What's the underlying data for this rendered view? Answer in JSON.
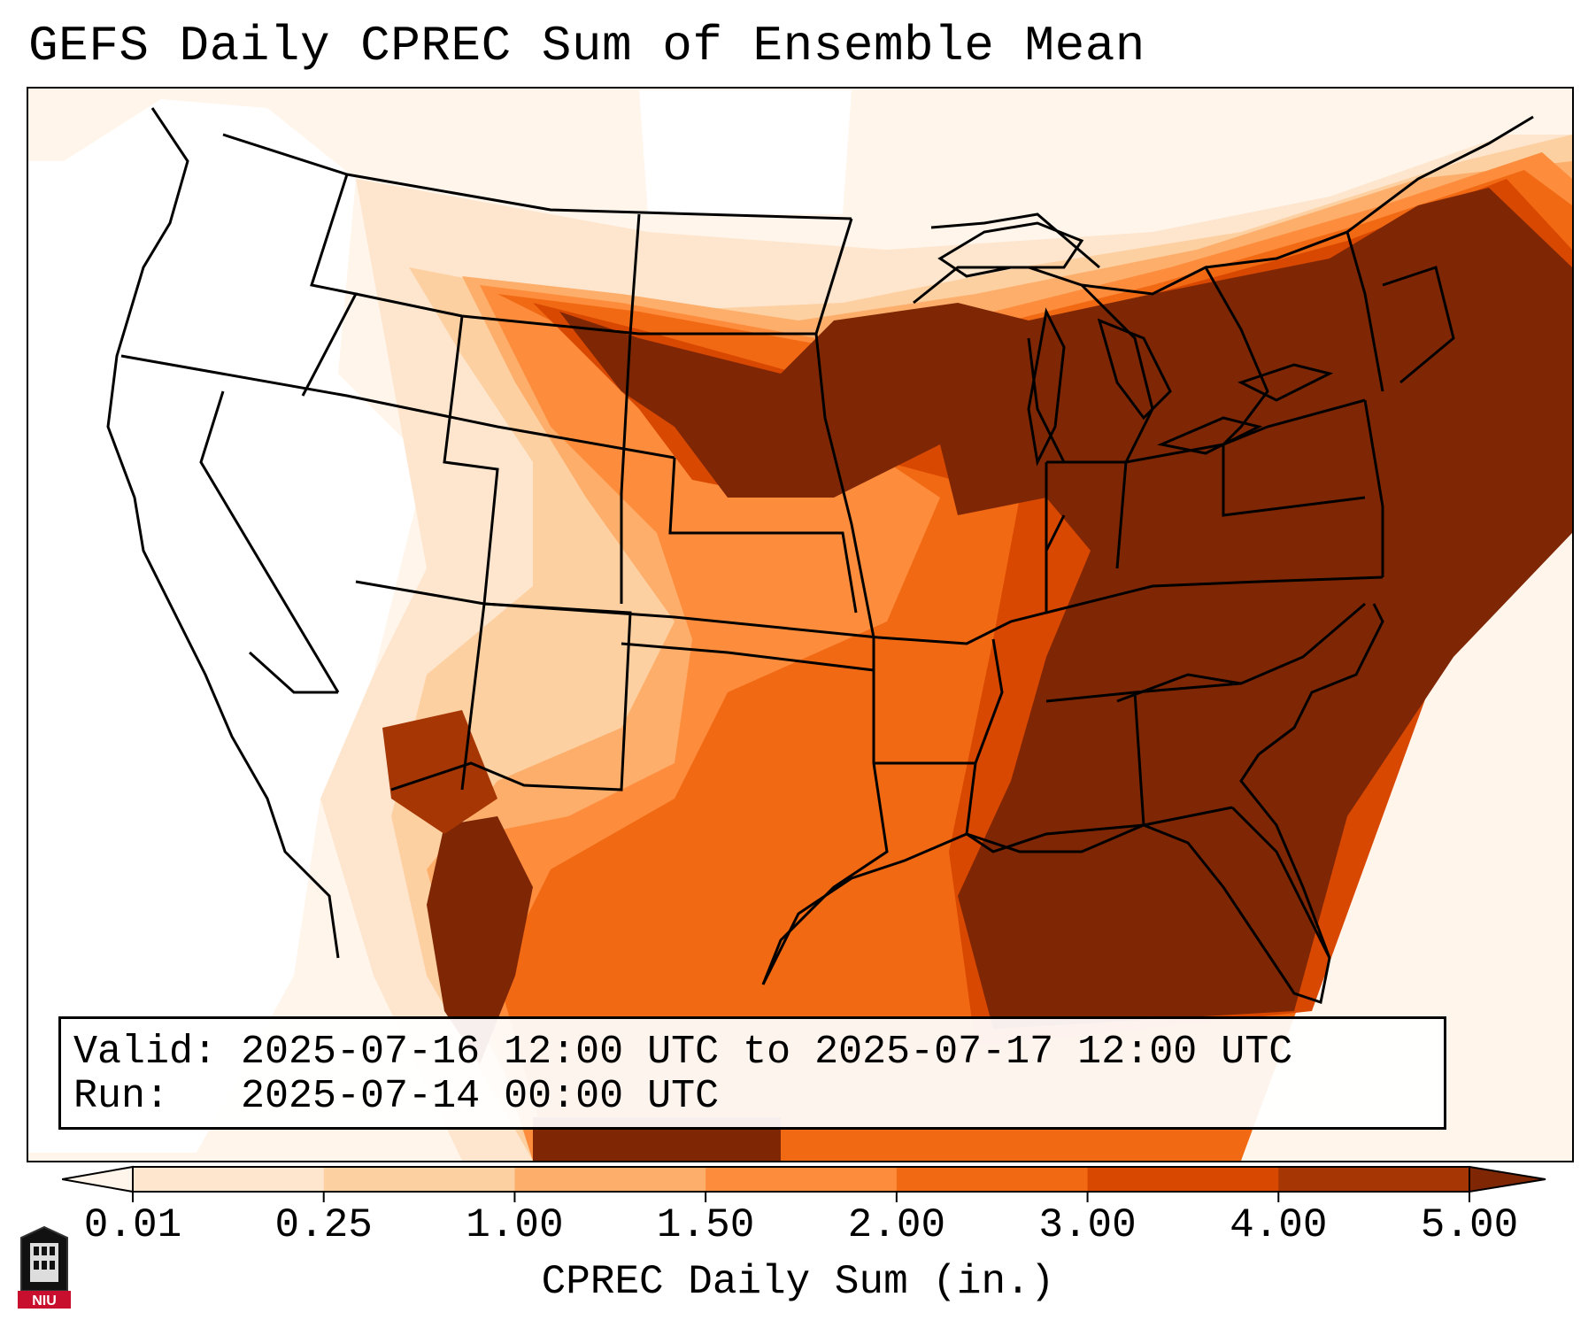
{
  "title": "GEFS Daily CPREC Sum of Ensemble Mean",
  "info": {
    "valid": "Valid: 2025-07-16 12:00 UTC to 2025-07-17 12:00 UTC",
    "run": "Run:   2025-07-14 00:00 UTC"
  },
  "colorbar": {
    "label": "CPREC Daily Sum (in.)",
    "ticks": [
      "0.01",
      "0.25",
      "1.00",
      "1.50",
      "2.00",
      "3.00",
      "4.00",
      "5.00"
    ],
    "colors": [
      "#fff5eb",
      "#fee6ce",
      "#fdd0a2",
      "#fdae6b",
      "#fd8d3c",
      "#f16913",
      "#d94801",
      "#a63603",
      "#7f2704"
    ],
    "extend": "both"
  },
  "logo": {
    "text": "NIU",
    "color": "#c8102e"
  },
  "map": {
    "projection": "Lambert Conformal Conic",
    "region": "Contiguous United States",
    "variable": "Convective precipitation daily sum (in.)"
  }
}
